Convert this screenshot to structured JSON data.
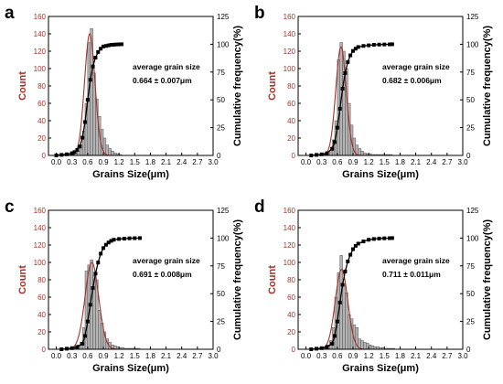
{
  "figure": {
    "panels": [
      {
        "letter": "a",
        "annotation_title": "average grain size",
        "annotation_value": "0.664 ± 0.007μm"
      },
      {
        "letter": "b",
        "annotation_title": "average grain size",
        "annotation_value": "0.682 ± 0.006μm"
      },
      {
        "letter": "c",
        "annotation_title": "average grain size",
        "annotation_value": "0.691 ± 0.008μm"
      },
      {
        "letter": "d",
        "annotation_title": "average grain size",
        "annotation_value": "0.711 ± 0.011μm"
      }
    ]
  },
  "chart_data": [
    {
      "type": "bar",
      "panel": "a",
      "xlabel": "Grains Size(μm)",
      "ylabel": "Count",
      "y2label": "Cumulative frequency(%)",
      "xlim": [
        -0.15,
        3.0
      ],
      "ylim": [
        0,
        160
      ],
      "y2lim": [
        0,
        125
      ],
      "xticks": [
        "0.0",
        "0.3",
        "0.6",
        "0.9",
        "1.2",
        "1.5",
        "1.8",
        "2.1",
        "2.4",
        "2.7",
        "3.0"
      ],
      "yticks": [
        "0",
        "20",
        "40",
        "60",
        "80",
        "100",
        "120",
        "140",
        "160"
      ],
      "y2ticks": [
        "0",
        "25",
        "50",
        "75",
        "100",
        "125"
      ],
      "bin_width": 0.05,
      "bins": [
        0.0,
        0.05,
        0.1,
        0.15,
        0.2,
        0.25,
        0.3,
        0.35,
        0.4,
        0.45,
        0.5,
        0.55,
        0.6,
        0.65,
        0.7,
        0.75,
        0.8,
        0.85,
        0.9,
        0.95,
        1.0,
        1.05,
        1.1,
        1.15,
        1.2
      ],
      "counts": [
        1,
        1,
        1,
        2,
        2,
        1,
        2,
        3,
        5,
        12,
        28,
        60,
        130,
        146,
        95,
        65,
        45,
        30,
        20,
        12,
        8,
        5,
        3,
        2,
        1
      ],
      "fit_curve": {
        "type": "gaussian",
        "center": 0.64,
        "sigma": 0.1,
        "peak": 140
      },
      "cumulative": {
        "x": [
          0.0,
          0.1,
          0.2,
          0.3,
          0.35,
          0.4,
          0.45,
          0.5,
          0.55,
          0.6,
          0.65,
          0.7,
          0.75,
          0.8,
          0.85,
          0.9,
          0.95,
          1.0,
          1.05,
          1.1,
          1.15,
          1.2,
          1.25
        ],
        "y": [
          0,
          0.5,
          1,
          2,
          3,
          5,
          8,
          16,
          30,
          50,
          68,
          80,
          88,
          93,
          96,
          98,
          98.5,
          99,
          99.5,
          99.6,
          99.8,
          99.9,
          100
        ]
      }
    },
    {
      "type": "bar",
      "panel": "b",
      "xlabel": "Grains Size(μm)",
      "ylabel": "Count",
      "y2label": "Cumulative frequency(%)",
      "xlim": [
        -0.15,
        3.0
      ],
      "ylim": [
        0,
        160
      ],
      "y2lim": [
        0,
        125
      ],
      "xticks": [
        "0.0",
        "0.3",
        "0.6",
        "0.9",
        "1.2",
        "1.5",
        "1.8",
        "2.1",
        "2.4",
        "2.7",
        "3.0"
      ],
      "yticks": [
        "0",
        "20",
        "40",
        "60",
        "80",
        "100",
        "120",
        "140",
        "160"
      ],
      "y2ticks": [
        "0",
        "25",
        "50",
        "75",
        "100",
        "125"
      ],
      "bin_width": 0.05,
      "bins": [
        0.3,
        0.35,
        0.4,
        0.45,
        0.5,
        0.55,
        0.6,
        0.65,
        0.7,
        0.75,
        0.8,
        0.85,
        0.9,
        0.95,
        1.0,
        1.05,
        1.1,
        1.15,
        1.2,
        1.25,
        1.3,
        1.35,
        1.4,
        1.45,
        1.5,
        1.55,
        1.6
      ],
      "counts": [
        1,
        2,
        3,
        6,
        18,
        40,
        110,
        130,
        120,
        100,
        60,
        35,
        20,
        12,
        8,
        5,
        3,
        2,
        2,
        1,
        1,
        1,
        1,
        1,
        1,
        1,
        1
      ],
      "fit_curve": {
        "type": "gaussian",
        "center": 0.67,
        "sigma": 0.1,
        "peak": 125
      },
      "cumulative": {
        "x": [
          0.1,
          0.2,
          0.3,
          0.4,
          0.5,
          0.55,
          0.6,
          0.65,
          0.7,
          0.75,
          0.8,
          0.85,
          0.9,
          0.95,
          1.0,
          1.1,
          1.2,
          1.3,
          1.4,
          1.5,
          1.6,
          1.65
        ],
        "y": [
          0,
          0.5,
          1,
          2,
          6,
          12,
          25,
          42,
          60,
          74,
          84,
          90,
          94,
          96,
          97.5,
          98.5,
          99,
          99.5,
          99.7,
          99.8,
          99.9,
          100
        ]
      }
    },
    {
      "type": "bar",
      "panel": "c",
      "xlabel": "Grains Size(μm)",
      "ylabel": "Count",
      "y2label": "Cumulative frequency(%)",
      "xlim": [
        -0.15,
        3.0
      ],
      "ylim": [
        0,
        160
      ],
      "y2lim": [
        0,
        125
      ],
      "xticks": [
        "0.0",
        "0.3",
        "0.6",
        "0.9",
        "1.2",
        "1.5",
        "1.8",
        "2.1",
        "2.4",
        "2.7",
        "3.0"
      ],
      "yticks": [
        "0",
        "20",
        "40",
        "60",
        "80",
        "100",
        "120",
        "140",
        "160"
      ],
      "y2ticks": [
        "0",
        "25",
        "50",
        "75",
        "100",
        "125"
      ],
      "bin_width": 0.05,
      "bins": [
        0.2,
        0.25,
        0.3,
        0.35,
        0.4,
        0.45,
        0.5,
        0.55,
        0.6,
        0.65,
        0.7,
        0.75,
        0.8,
        0.85,
        0.9,
        0.95,
        1.0,
        1.05,
        1.1,
        1.15,
        1.2,
        1.25,
        1.3,
        1.35,
        1.4,
        1.45,
        1.5,
        1.55
      ],
      "counts": [
        1,
        1,
        2,
        3,
        5,
        8,
        25,
        90,
        97,
        103,
        85,
        80,
        45,
        30,
        20,
        12,
        8,
        5,
        4,
        3,
        2,
        2,
        1,
        1,
        1,
        1,
        1,
        1
      ],
      "fit_curve": {
        "type": "gaussian",
        "center": 0.68,
        "sigma": 0.13,
        "peak": 100
      },
      "cumulative": {
        "x": [
          0.1,
          0.2,
          0.3,
          0.4,
          0.5,
          0.55,
          0.6,
          0.65,
          0.7,
          0.75,
          0.8,
          0.85,
          0.9,
          0.95,
          1.0,
          1.05,
          1.1,
          1.2,
          1.3,
          1.4,
          1.5,
          1.6
        ],
        "y": [
          0,
          0.5,
          1,
          2,
          5,
          12,
          25,
          40,
          55,
          68,
          78,
          86,
          91,
          94,
          96,
          97.5,
          98.5,
          99.2,
          99.5,
          99.8,
          99.9,
          100
        ]
      }
    },
    {
      "type": "bar",
      "panel": "d",
      "xlabel": "Grains Size(μm)",
      "ylabel": "Count",
      "y2label": "Cumulative frequency(%)",
      "xlim": [
        -0.15,
        3.0
      ],
      "ylim": [
        0,
        160
      ],
      "y2lim": [
        0,
        125
      ],
      "xticks": [
        "0.0",
        "0.3",
        "0.6",
        "0.9",
        "1.2",
        "1.5",
        "1.8",
        "2.1",
        "2.4",
        "2.7",
        "3.0"
      ],
      "yticks": [
        "0",
        "20",
        "40",
        "60",
        "80",
        "100",
        "120",
        "140",
        "160"
      ],
      "y2ticks": [
        "0",
        "25",
        "50",
        "75",
        "100",
        "125"
      ],
      "bin_width": 0.05,
      "bins": [
        0.2,
        0.25,
        0.3,
        0.35,
        0.4,
        0.45,
        0.5,
        0.55,
        0.6,
        0.65,
        0.7,
        0.75,
        0.8,
        0.85,
        0.9,
        0.95,
        1.0,
        1.05,
        1.1,
        1.15,
        1.2,
        1.25,
        1.3,
        1.35,
        1.4,
        1.45,
        1.5,
        1.55,
        1.6,
        1.65
      ],
      "counts": [
        1,
        1,
        2,
        3,
        5,
        10,
        25,
        60,
        88,
        108,
        75,
        65,
        40,
        35,
        28,
        25,
        12,
        10,
        8,
        7,
        5,
        4,
        3,
        3,
        2,
        2,
        1,
        1,
        1,
        1
      ],
      "fit_curve": {
        "type": "gaussian",
        "center": 0.68,
        "sigma": 0.12,
        "peak": 92
      },
      "cumulative": {
        "x": [
          0.1,
          0.2,
          0.3,
          0.4,
          0.5,
          0.55,
          0.6,
          0.65,
          0.7,
          0.75,
          0.8,
          0.85,
          0.9,
          0.95,
          1.0,
          1.1,
          1.2,
          1.3,
          1.4,
          1.5,
          1.6,
          1.65
        ],
        "y": [
          0,
          0.5,
          1,
          2,
          5,
          12,
          25,
          42,
          58,
          70,
          79,
          85,
          90,
          93,
          95,
          97,
          98.5,
          99.2,
          99.6,
          99.8,
          99.9,
          100
        ]
      }
    }
  ]
}
